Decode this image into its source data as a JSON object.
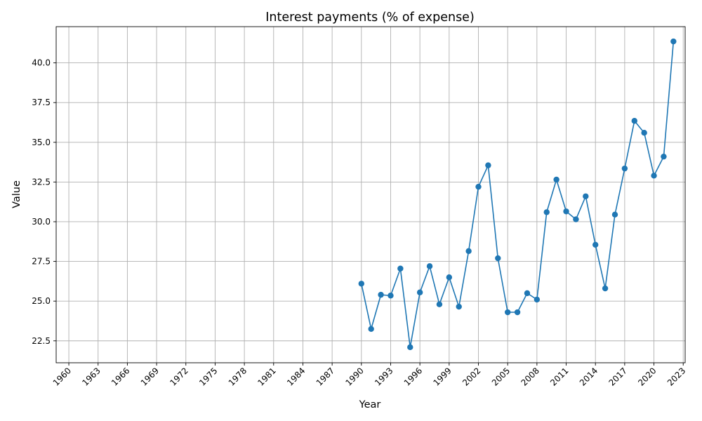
{
  "chart_data": {
    "type": "line",
    "title": "Interest payments (% of expense)",
    "xlabel": "Year",
    "ylabel": "Value",
    "xlim": [
      1958.7,
      2023.2
    ],
    "ylim": [
      21.12,
      42.28
    ],
    "grid": true,
    "marker": "circle",
    "color": "#1f77b4",
    "x_ticks": [
      "1960",
      "1963",
      "1966",
      "1969",
      "1972",
      "1975",
      "1978",
      "1981",
      "1984",
      "1987",
      "1990",
      "1993",
      "1996",
      "1999",
      "2002",
      "2005",
      "2008",
      "2011",
      "2014",
      "2017",
      "2020",
      "2023"
    ],
    "y_ticks": [
      "22.5",
      "25.0",
      "27.5",
      "30.0",
      "32.5",
      "35.0",
      "37.5",
      "40.0"
    ],
    "series": [
      {
        "x": [
          1990,
          1991,
          1992,
          1993,
          1994,
          1995,
          1996,
          1997,
          1998,
          1999,
          2000,
          2001,
          2002,
          2003,
          2004,
          2005,
          2006,
          2007,
          2008,
          2009,
          2010,
          2011,
          2012,
          2013,
          2014,
          2015,
          2016,
          2017,
          2018,
          2019,
          2020,
          2021,
          2022
        ],
        "values": [
          26.1,
          23.25,
          25.4,
          25.35,
          27.05,
          22.1,
          25.55,
          27.2,
          24.8,
          26.5,
          24.65,
          28.15,
          32.2,
          33.55,
          27.7,
          24.3,
          24.3,
          25.5,
          25.1,
          30.6,
          32.65,
          30.65,
          30.15,
          31.6,
          28.55,
          25.8,
          30.45,
          33.35,
          36.35,
          35.6,
          32.9,
          34.1,
          41.35
        ]
      }
    ]
  }
}
